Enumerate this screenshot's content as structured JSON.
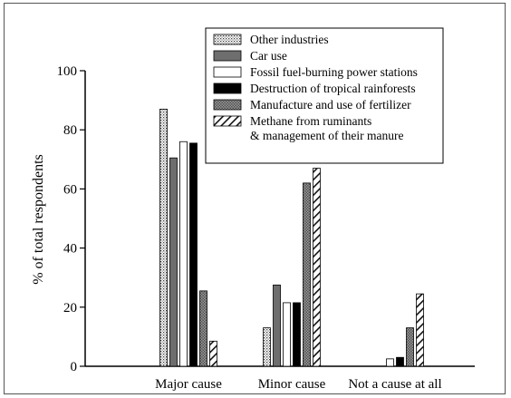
{
  "chart_data": {
    "type": "bar",
    "title": "",
    "xlabel": "",
    "ylabel": "% of total respondents",
    "ylim": [
      0,
      100
    ],
    "yticks": [
      "0",
      "20",
      "40",
      "60",
      "80",
      "100"
    ],
    "grid": false,
    "legend_position": "top-right",
    "categories": [
      "Major cause",
      "Minor cause",
      "Not a cause at all"
    ],
    "series": [
      {
        "name": "Other industries",
        "pattern": "dots",
        "values": [
          87,
          13,
          0
        ]
      },
      {
        "name": "Car use",
        "pattern": "dark-gray",
        "values": [
          70.5,
          27.5,
          0
        ]
      },
      {
        "name": "Fossil fuel-burning power stations",
        "pattern": "white",
        "values": [
          76,
          21.5,
          2.5
        ]
      },
      {
        "name": "Destruction of tropical rainforests",
        "pattern": "black",
        "values": [
          75.5,
          21.5,
          3
        ]
      },
      {
        "name": "Manufacture and use of fertilizer",
        "pattern": "crosshatch",
        "values": [
          25.5,
          62,
          13
        ]
      },
      {
        "name": "Methane from ruminants\n& management of their manure",
        "pattern": "diagonal",
        "values": [
          8.5,
          67,
          24.5
        ]
      }
    ]
  }
}
